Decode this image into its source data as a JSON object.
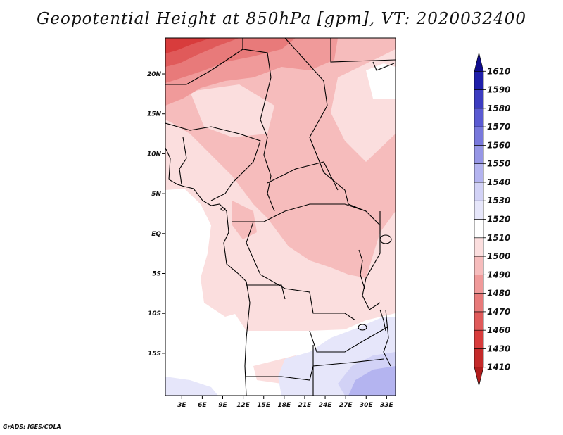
{
  "title": "Geopotential Height at 850hPa [gpm], VT: 2020032400",
  "credit": "GrADS: IGES/COLA",
  "chart_data": {
    "type": "heatmap",
    "title": "Geopotential Height at 850hPa [gpm], VT: 2020032400",
    "variable": "Geopotential Height",
    "level": "850hPa",
    "units": "gpm",
    "valid_time": "2020032400",
    "x_ticks": [
      "3E",
      "6E",
      "9E",
      "12E",
      "15E",
      "18E",
      "21E",
      "24E",
      "27E",
      "30E",
      "33E"
    ],
    "y_ticks": [
      "20N",
      "15N",
      "10N",
      "5N",
      "EQ",
      "5S",
      "10S",
      "15S"
    ],
    "colorbar": {
      "levels": [
        1410,
        1430,
        1460,
        1470,
        1480,
        1490,
        1500,
        1510,
        1520,
        1530,
        1540,
        1550,
        1560,
        1570,
        1580,
        1590,
        1610
      ],
      "colors": [
        "#b01c1c",
        "#c42a2a",
        "#d83c3c",
        "#e05a5a",
        "#e87a7a",
        "#f09a9a",
        "#f6bcbc",
        "#fbdede",
        "#ffffff",
        "#e6e6fa",
        "#d2d2f6",
        "#b4b4f0",
        "#9696e6",
        "#7878dc",
        "#5a5ad2",
        "#3c3cc0",
        "#1e1eaa",
        "#100c8c"
      ]
    }
  }
}
